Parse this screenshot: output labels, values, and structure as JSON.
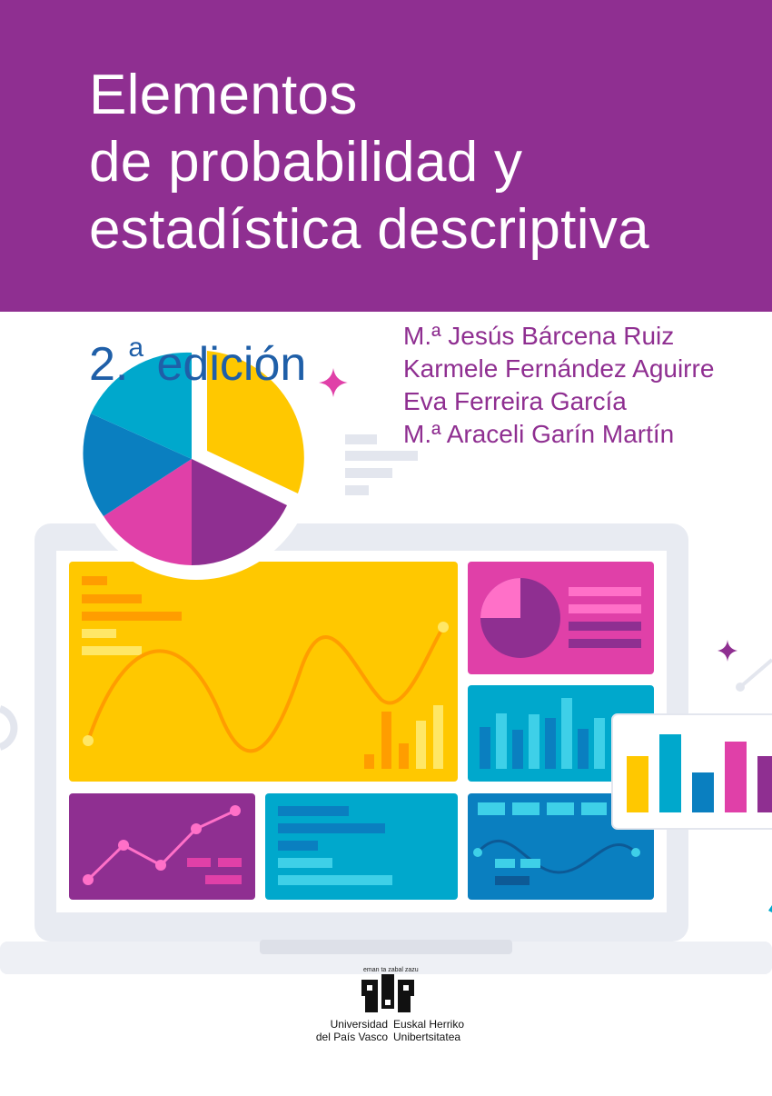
{
  "cover": {
    "title_lines": [
      "Elementos",
      "de probabilidad y",
      "estadística descriptiva"
    ],
    "edition_number": "2.",
    "edition_sup": "a",
    "edition_word": "edición",
    "authors": [
      "M.ª Jesús Bárcena Ruiz",
      "Karmele Fernández Aguirre",
      "Eva Ferreira García",
      "M.ª Araceli Garín Martín"
    ]
  },
  "publisher": {
    "motto": "eman ta zabal zazu",
    "name_es_lines": [
      "Universidad",
      "del País Vasco"
    ],
    "name_eu_lines": [
      "Euskal Herriko",
      "Unibertsitatea"
    ]
  },
  "colors": {
    "banner": "#8f2f91",
    "edition": "#1f5fa8",
    "yellow": "#ffc800",
    "cyan": "#00a8cc",
    "blue": "#0a7fc0",
    "magenta": "#e040a8",
    "purple": "#8f2f91"
  }
}
